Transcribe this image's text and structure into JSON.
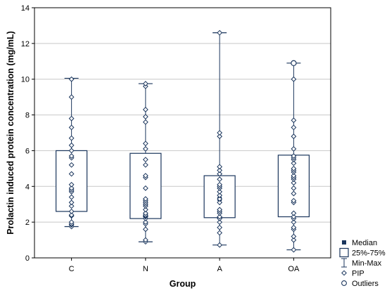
{
  "chart_data": {
    "type": "box",
    "xlabel": "Group",
    "ylabel": "Prolactin induced protein concentration (mg/mL)",
    "ylim": [
      0,
      14
    ],
    "yticks": [
      0,
      2,
      4,
      6,
      8,
      10,
      12,
      14
    ],
    "grid": true,
    "categories": [
      "C",
      "N",
      "A",
      "OA"
    ],
    "boxes": [
      {
        "group": "C",
        "min": 1.75,
        "q1": 2.6,
        "median": 3.8,
        "q3": 6.0,
        "max": 10.05
      },
      {
        "group": "N",
        "min": 0.9,
        "q1": 2.2,
        "median": 2.4,
        "q3": 5.85,
        "max": 9.75
      },
      {
        "group": "A",
        "min": 0.72,
        "q1": 2.25,
        "median": 3.3,
        "q3": 4.6,
        "max": 12.6
      },
      {
        "group": "OA",
        "min": 0.45,
        "q1": 2.3,
        "median": 4.5,
        "q3": 5.75,
        "max": 10.9
      }
    ],
    "points": [
      {
        "group": "C",
        "values": [
          1.75,
          1.85,
          1.9,
          2.0,
          2.35,
          2.4,
          2.6,
          2.9,
          3.1,
          3.4,
          3.7,
          3.8,
          3.9,
          4.1,
          4.7,
          5.2,
          5.6,
          5.7,
          6.0,
          6.3,
          6.7,
          7.3,
          7.8,
          9.0,
          10.0
        ]
      },
      {
        "group": "N",
        "values": [
          0.9,
          1.0,
          1.6,
          1.9,
          2.0,
          2.2,
          2.3,
          2.35,
          2.4,
          2.5,
          2.7,
          2.9,
          3.0,
          3.1,
          3.2,
          3.3,
          3.9,
          4.5,
          4.6,
          5.2,
          5.5,
          6.1,
          6.4,
          7.6,
          7.9,
          8.3,
          9.6,
          9.75
        ]
      },
      {
        "group": "A",
        "values": [
          0.72,
          1.4,
          1.7,
          2.0,
          2.2,
          2.3,
          2.5,
          2.6,
          2.7,
          3.1,
          3.3,
          3.5,
          3.7,
          3.9,
          4.0,
          4.1,
          4.4,
          4.7,
          4.9,
          5.1,
          6.8,
          7.0,
          12.6
        ]
      },
      {
        "group": "OA",
        "values": [
          0.45,
          1.0,
          1.2,
          1.6,
          1.7,
          2.0,
          2.2,
          2.3,
          2.5,
          3.1,
          3.2,
          3.6,
          3.9,
          4.2,
          4.4,
          4.5,
          4.6,
          4.8,
          4.9,
          5.0,
          5.3,
          5.5,
          5.6,
          5.7,
          6.1,
          6.8,
          7.3,
          7.7,
          10.0
        ]
      }
    ],
    "outliers": [
      {
        "group": "OA",
        "value": 10.9
      }
    ],
    "legend": {
      "placement": "bottom-right",
      "entries": [
        {
          "label": "Median",
          "symbol": "square-filled"
        },
        {
          "label": "25%-75%",
          "symbol": "box"
        },
        {
          "label": "Min-Max",
          "symbol": "whisker"
        },
        {
          "label": "PIP",
          "symbol": "diamond"
        },
        {
          "label": "Outliers",
          "symbol": "circle"
        }
      ]
    },
    "colors": {
      "series": "#1b365d",
      "grid": "#c8c8c8",
      "axis": "#000000"
    }
  }
}
